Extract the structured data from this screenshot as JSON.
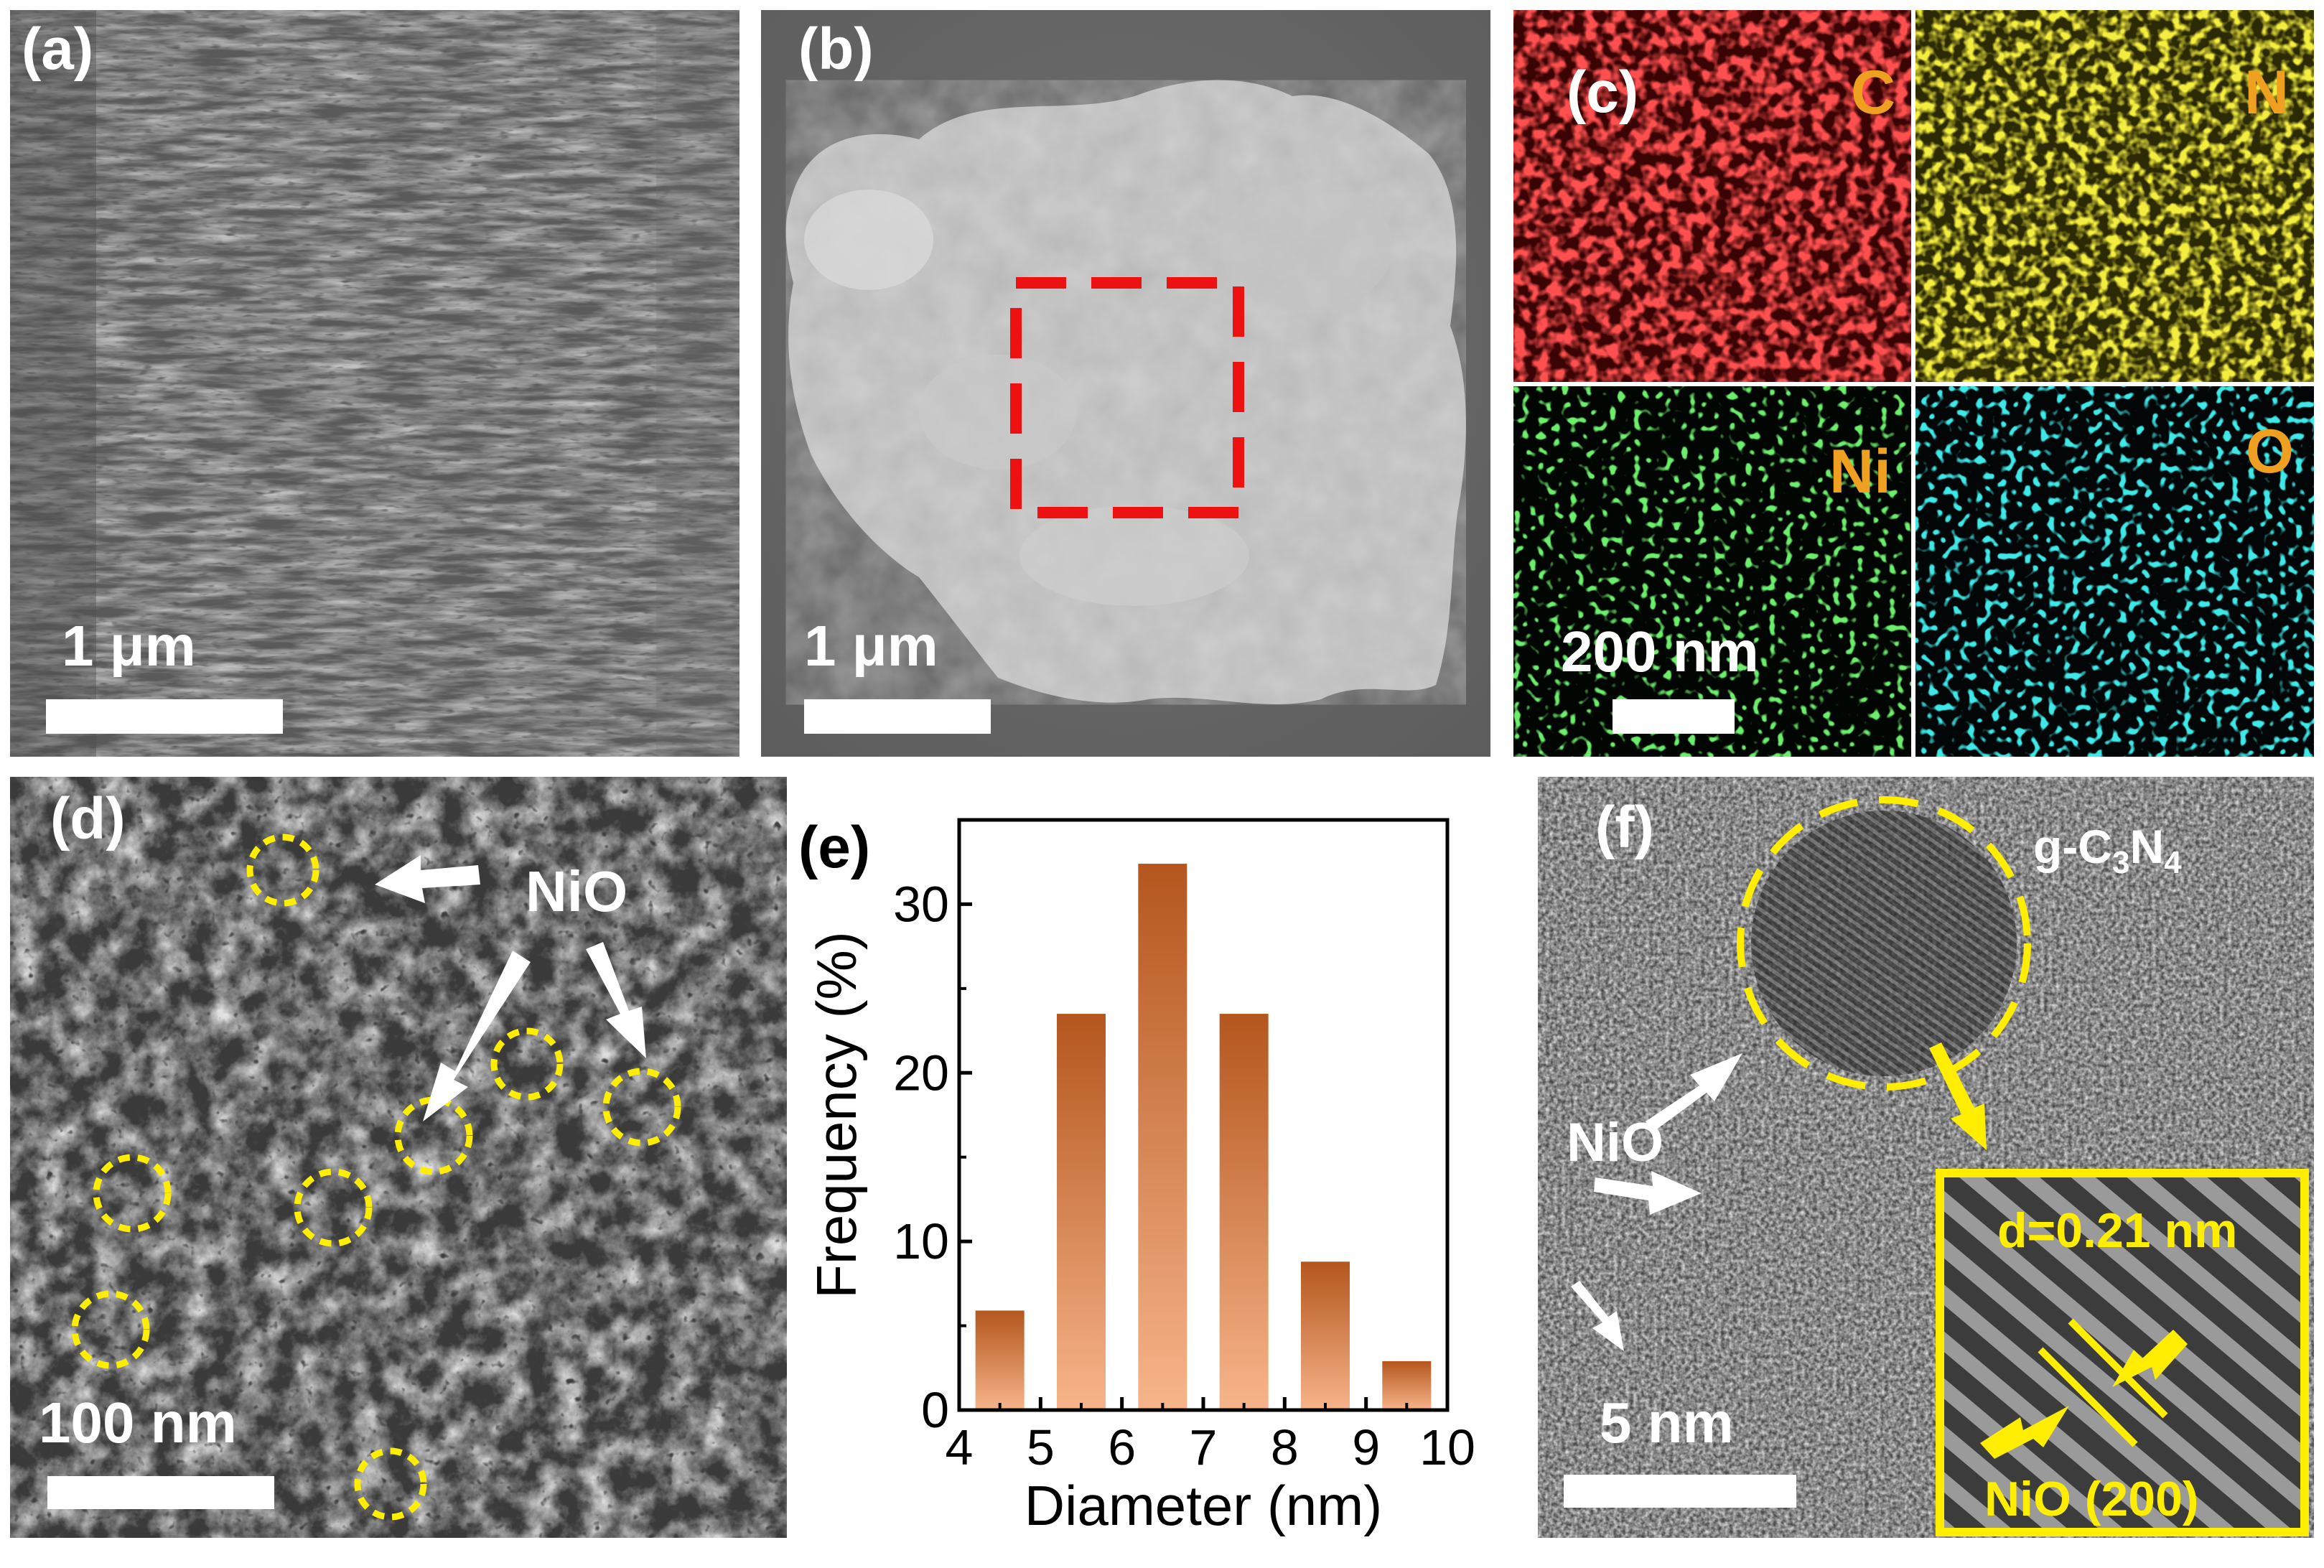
{
  "panels": {
    "a": {
      "label": "(a)",
      "scale_bar": "1 μm"
    },
    "b": {
      "label": "(b)",
      "scale_bar": "1 μm"
    },
    "c": {
      "label": "(c)",
      "scale_bar": "200 nm",
      "elements": [
        "C",
        "N",
        "Ni",
        "O"
      ],
      "element_colors": {
        "C": "#ff1010",
        "N": "#d8cc10",
        "Ni": "#20c020",
        "O": "#10c8c8"
      }
    },
    "d": {
      "label": "(d)",
      "scale_bar": "100 nm",
      "annotation": "NiO"
    },
    "e": {
      "label": "(e)"
    },
    "f": {
      "label": "(f)",
      "scale_bar": "5 nm",
      "annotation": "NiO",
      "material": "g-C",
      "material_sub1": "3",
      "material_mid": "N",
      "material_sub2": "4",
      "inset_spacing": "d=0.21 nm",
      "inset_plane": "NiO (200)"
    }
  },
  "colors": {
    "highlight_red": "#ee1111",
    "highlight_yellow": "#ffee00",
    "bar_top": "#b4561e",
    "bar_bottom": "#f7b48a"
  },
  "chart_data": {
    "type": "bar",
    "xlabel": "Diameter (nm)",
    "ylabel": "Frequency (%)",
    "xlim": [
      4,
      10
    ],
    "ylim": [
      0,
      35
    ],
    "xticks": [
      4,
      5,
      6,
      7,
      8,
      9,
      10
    ],
    "yticks": [
      0,
      10,
      20,
      30
    ],
    "x": [
      4.5,
      5.5,
      6.5,
      7.5,
      8.5,
      9.5
    ],
    "values": [
      5.9,
      23.5,
      32.4,
      23.5,
      8.8,
      2.9
    ],
    "bar_width": 0.6,
    "grid": false
  }
}
